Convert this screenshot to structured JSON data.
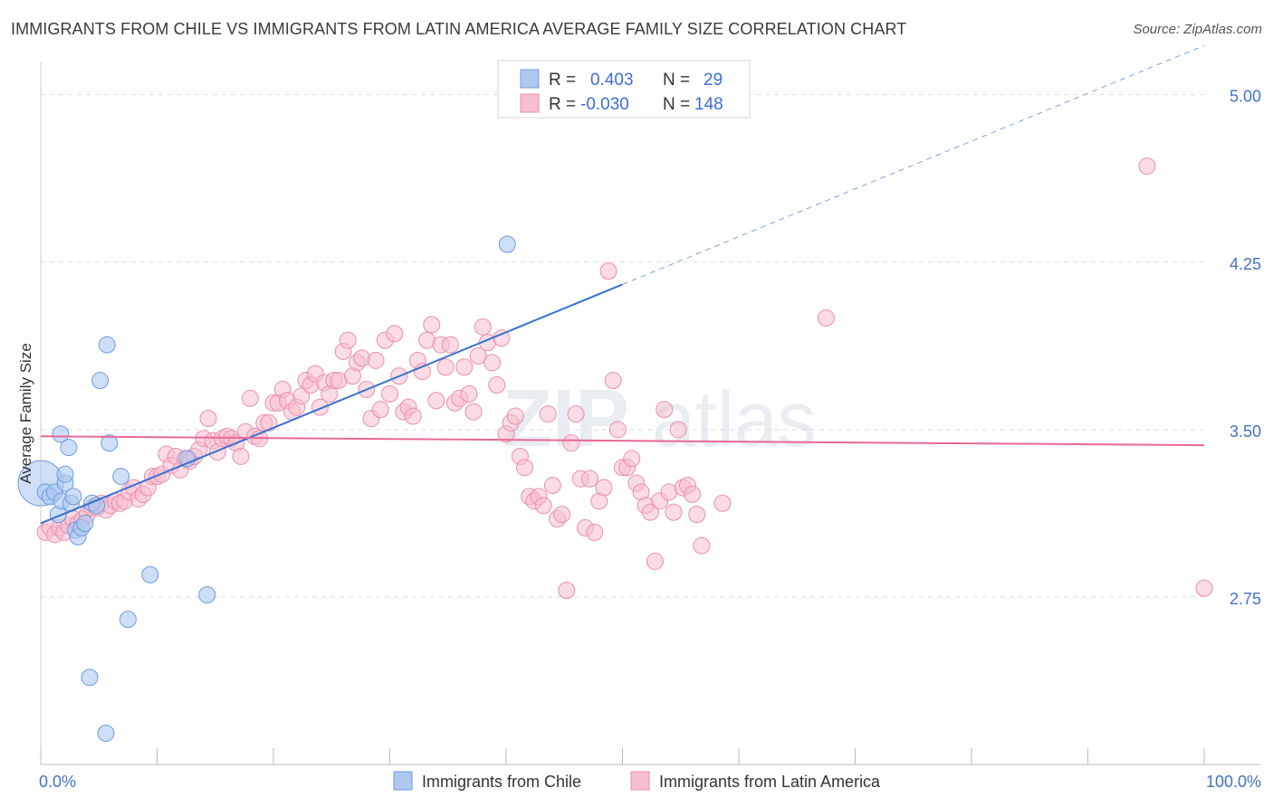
{
  "title": "IMMIGRANTS FROM CHILE VS IMMIGRANTS FROM LATIN AMERICA AVERAGE FAMILY SIZE CORRELATION CHART",
  "source": "Source: ZipAtlas.com",
  "watermark": {
    "zip": "ZIP",
    "atlas": "atlas"
  },
  "colors": {
    "chile_fill": "#aec8f0",
    "chile_stroke": "#6d9be0",
    "chile_line": "#3572d0",
    "latam_fill": "#f7bdd0",
    "latam_stroke": "#ea8fae",
    "latam_line": "#e8679a",
    "axis_text": "#4472c4",
    "grid": "#dddddd"
  },
  "legend": {
    "r_label": "R =",
    "n_label": "N =",
    "rows": [
      {
        "r": "0.403",
        "n": "29"
      },
      {
        "r": "-0.030",
        "n": "148"
      }
    ]
  },
  "chart_data": {
    "type": "scatter",
    "title": "IMMIGRANTS FROM CHILE VS IMMIGRANTS FROM LATIN AMERICA AVERAGE FAMILY SIZE CORRELATION CHART",
    "xlabel": "",
    "ylabel": "Average Family Size",
    "xlim": [
      0,
      100
    ],
    "ylim": [
      2.0,
      5.1
    ],
    "x_tick_labels": [
      "0.0%",
      "100.0%"
    ],
    "y_ticks": [
      2.75,
      3.5,
      4.25,
      5.0
    ],
    "y_tick_labels": [
      "2.75",
      "3.50",
      "4.25",
      "5.00"
    ],
    "grid": "horizontal dashed",
    "legend_placement": "top-center",
    "series": [
      {
        "name": "Immigrants from Chile",
        "r": 0.403,
        "n": 29,
        "trend": {
          "x0": 0,
          "y0": 3.08,
          "x1": 50,
          "y1": 4.15,
          "dashed_to_x": 100
        },
        "points": [
          [
            0.0,
            3.26,
            26
          ],
          [
            0.4,
            3.22,
            10
          ],
          [
            0.8,
            3.2,
            10
          ],
          [
            1.2,
            3.22,
            10
          ],
          [
            1.5,
            3.12,
            10
          ],
          [
            1.8,
            3.18,
            10
          ],
          [
            1.7,
            3.48,
            10
          ],
          [
            2.1,
            3.26,
            10
          ],
          [
            2.1,
            3.3,
            10
          ],
          [
            2.4,
            3.42,
            10
          ],
          [
            2.6,
            3.17,
            10
          ],
          [
            2.8,
            3.2,
            10
          ],
          [
            3.0,
            3.05,
            10
          ],
          [
            3.2,
            3.02,
            10
          ],
          [
            3.5,
            3.06,
            10
          ],
          [
            3.8,
            3.08,
            10
          ],
          [
            4.4,
            3.17,
            10
          ],
          [
            4.8,
            3.16,
            10
          ],
          [
            5.1,
            3.72,
            10
          ],
          [
            5.7,
            3.88,
            10
          ],
          [
            5.9,
            3.44,
            10
          ],
          [
            6.9,
            3.29,
            10
          ],
          [
            7.5,
            2.65,
            10
          ],
          [
            4.2,
            2.39,
            10
          ],
          [
            5.6,
            2.14,
            10
          ],
          [
            9.4,
            2.85,
            10
          ],
          [
            12.6,
            3.37,
            10
          ],
          [
            14.3,
            2.76,
            10
          ],
          [
            40.1,
            4.33,
            10
          ]
        ]
      },
      {
        "name": "Immigrants from Latin America",
        "r": -0.03,
        "n": 148,
        "trend": {
          "x0": 0,
          "y0": 3.47,
          "x1": 100,
          "y1": 3.43
        },
        "points": [
          [
            0.4,
            3.04
          ],
          [
            0.8,
            3.06
          ],
          [
            1.2,
            3.03
          ],
          [
            1.6,
            3.06
          ],
          [
            2.0,
            3.04
          ],
          [
            2.4,
            3.07
          ],
          [
            2.8,
            3.1
          ],
          [
            3.2,
            3.08
          ],
          [
            3.6,
            3.1
          ],
          [
            4.0,
            3.12
          ],
          [
            4.4,
            3.15
          ],
          [
            4.8,
            3.15
          ],
          [
            5.2,
            3.17
          ],
          [
            5.6,
            3.14
          ],
          [
            6.0,
            3.16
          ],
          [
            6.4,
            3.18
          ],
          [
            6.8,
            3.17
          ],
          [
            7.2,
            3.18
          ],
          [
            7.6,
            3.22
          ],
          [
            8.0,
            3.24
          ],
          [
            8.4,
            3.19
          ],
          [
            8.8,
            3.21
          ],
          [
            9.2,
            3.24
          ],
          [
            9.6,
            3.29
          ],
          [
            10.0,
            3.29
          ],
          [
            10.4,
            3.3
          ],
          [
            10.8,
            3.39
          ],
          [
            11.2,
            3.34
          ],
          [
            11.6,
            3.38
          ],
          [
            12.0,
            3.32
          ],
          [
            12.4,
            3.37
          ],
          [
            12.8,
            3.36
          ],
          [
            13.2,
            3.38
          ],
          [
            13.6,
            3.41
          ],
          [
            14.0,
            3.46
          ],
          [
            14.4,
            3.55
          ],
          [
            14.8,
            3.45
          ],
          [
            15.2,
            3.4
          ],
          [
            15.6,
            3.46
          ],
          [
            16.0,
            3.47
          ],
          [
            16.4,
            3.46
          ],
          [
            16.8,
            3.44
          ],
          [
            17.2,
            3.38
          ],
          [
            17.6,
            3.49
          ],
          [
            18.0,
            3.64
          ],
          [
            18.4,
            3.47
          ],
          [
            18.8,
            3.46
          ],
          [
            19.2,
            3.53
          ],
          [
            19.6,
            3.53
          ],
          [
            20.0,
            3.62
          ],
          [
            20.4,
            3.62
          ],
          [
            20.8,
            3.68
          ],
          [
            21.2,
            3.63
          ],
          [
            21.6,
            3.58
          ],
          [
            22.0,
            3.6
          ],
          [
            22.4,
            3.65
          ],
          [
            22.8,
            3.72
          ],
          [
            23.2,
            3.7
          ],
          [
            23.6,
            3.75
          ],
          [
            24.0,
            3.6
          ],
          [
            24.4,
            3.71
          ],
          [
            24.8,
            3.66
          ],
          [
            25.2,
            3.72
          ],
          [
            25.6,
            3.72
          ],
          [
            26.0,
            3.85
          ],
          [
            26.4,
            3.9
          ],
          [
            26.8,
            3.74
          ],
          [
            27.2,
            3.8
          ],
          [
            27.6,
            3.82
          ],
          [
            28.0,
            3.68
          ],
          [
            28.4,
            3.55
          ],
          [
            28.8,
            3.81
          ],
          [
            29.2,
            3.59
          ],
          [
            29.6,
            3.9
          ],
          [
            30.0,
            3.66
          ],
          [
            30.4,
            3.93
          ],
          [
            30.8,
            3.74
          ],
          [
            31.2,
            3.58
          ],
          [
            31.6,
            3.6
          ],
          [
            32.0,
            3.56
          ],
          [
            32.4,
            3.81
          ],
          [
            32.8,
            3.76
          ],
          [
            33.2,
            3.9
          ],
          [
            33.6,
            3.97
          ],
          [
            34.0,
            3.63
          ],
          [
            34.4,
            3.88
          ],
          [
            34.8,
            3.78
          ],
          [
            35.2,
            3.88
          ],
          [
            35.6,
            3.62
          ],
          [
            36.0,
            3.64
          ],
          [
            36.4,
            3.78
          ],
          [
            36.8,
            3.66
          ],
          [
            37.2,
            3.58
          ],
          [
            37.6,
            3.83
          ],
          [
            38.0,
            3.96
          ],
          [
            38.4,
            3.89
          ],
          [
            38.8,
            3.8
          ],
          [
            39.2,
            3.7
          ],
          [
            39.6,
            3.91
          ],
          [
            40.0,
            3.48
          ],
          [
            40.4,
            3.53
          ],
          [
            40.8,
            3.56
          ],
          [
            41.2,
            3.38
          ],
          [
            41.6,
            3.33
          ],
          [
            42.0,
            3.2
          ],
          [
            42.4,
            3.18
          ],
          [
            42.8,
            3.2
          ],
          [
            43.2,
            3.16
          ],
          [
            43.6,
            3.57
          ],
          [
            44.0,
            3.25
          ],
          [
            44.4,
            3.1
          ],
          [
            44.8,
            3.12
          ],
          [
            45.2,
            2.78
          ],
          [
            45.6,
            3.44
          ],
          [
            46.0,
            3.57
          ],
          [
            46.4,
            3.28
          ],
          [
            46.8,
            3.06
          ],
          [
            47.2,
            3.28
          ],
          [
            47.6,
            3.04
          ],
          [
            48.0,
            3.18
          ],
          [
            48.4,
            3.24
          ],
          [
            48.8,
            4.21
          ],
          [
            49.2,
            3.72
          ],
          [
            49.6,
            3.5
          ],
          [
            50.0,
            3.33
          ],
          [
            50.4,
            3.33
          ],
          [
            50.8,
            3.37
          ],
          [
            51.2,
            3.26
          ],
          [
            51.6,
            3.22
          ],
          [
            52.0,
            3.16
          ],
          [
            52.4,
            3.13
          ],
          [
            52.8,
            2.91
          ],
          [
            53.2,
            3.18
          ],
          [
            53.6,
            3.59
          ],
          [
            54.0,
            3.22
          ],
          [
            54.4,
            3.13
          ],
          [
            54.8,
            3.5
          ],
          [
            55.2,
            3.24
          ],
          [
            55.6,
            3.25
          ],
          [
            56.0,
            3.21
          ],
          [
            56.4,
            3.12
          ],
          [
            56.8,
            2.98
          ],
          [
            58.6,
            3.17
          ],
          [
            67.5,
            4.0
          ],
          [
            95.1,
            4.68
          ],
          [
            100.0,
            2.79
          ]
        ]
      }
    ]
  },
  "bottom_legend": {
    "items": [
      "Immigrants from Chile",
      "Immigrants from Latin America"
    ]
  }
}
